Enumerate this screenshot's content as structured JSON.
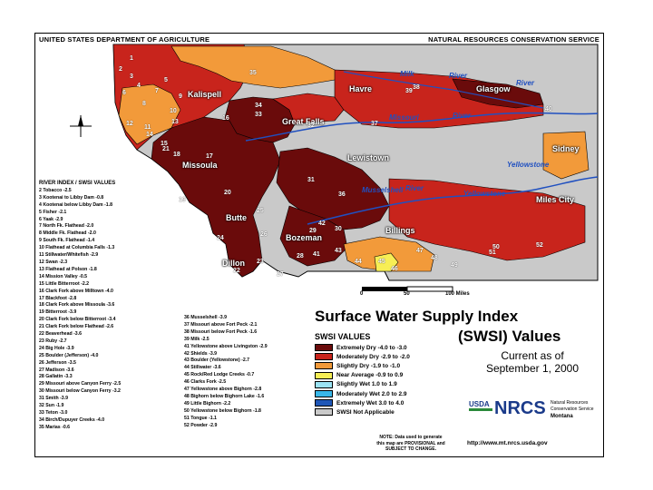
{
  "header": {
    "left": "UNITED STATES DEPARTMENT OF AGRICULTURE",
    "right": "NATURAL RESOURCES CONSERVATION SERVICE"
  },
  "cities": [
    "Kalispell",
    "Havre",
    "Glasgow",
    "Great Falls",
    "Missoula",
    "Lewistown",
    "Sidney",
    "Miles City",
    "Butte",
    "Billings",
    "Bozeman",
    "Dillon"
  ],
  "rivers": [
    "Milk",
    "River",
    "River",
    "Missouri",
    "River",
    "Yellowstone",
    "Musselshell",
    "River",
    "Yellowstone"
  ],
  "basin_numbers": [
    "1",
    "2",
    "3",
    "4",
    "5",
    "6",
    "7",
    "8",
    "9",
    "10",
    "11",
    "12",
    "13",
    "14",
    "15",
    "16",
    "17",
    "18",
    "19",
    "20",
    "21",
    "22",
    "23",
    "24",
    "25",
    "26",
    "27",
    "28",
    "29",
    "30",
    "31",
    "32",
    "33",
    "34",
    "35",
    "36",
    "37",
    "38",
    "39",
    "40",
    "41",
    "42",
    "43",
    "44",
    "45",
    "46",
    "47",
    "48",
    "49",
    "50",
    "51",
    "52"
  ],
  "index_list_title": "RIVER INDEX / SWSI VALUES",
  "index_list_left": [
    "2 Tobacco -2.5",
    "3 Kootenai to Libby Dam -0.8",
    "4 Kootenai below Libby Dam -1.8",
    "5 Fisher -2.1",
    "6 Yaak -2.9",
    "7 North Fk. Flathead -2.0",
    "8 Middle Fk. Flathead -2.0",
    "9 South Fk. Flathead -1.4",
    "10 Flathead at Columbia Falls -1.3",
    "11 Stillwater/Whitefish -2.9",
    "12 Swan -2.3",
    "13 Flathead at Polson -1.8",
    "14 Mission Valley -0.5",
    "15 Little Bitterroot -2.2",
    "16 Clark Fork above Milltown -4.0",
    "17 Blackfoot -2.8",
    "18 Clark Fork above Missoula -3.6",
    "19 Bitterroot -3.9",
    "20 Clark Fork below Bitterroot -3.4",
    "21 Clark Fork below Flathead -2.6",
    "22 Beaverhead -3.6",
    "23 Ruby -2.7",
    "24 Big Hole -3.9",
    "25 Boulder (Jefferson) -4.0",
    "26 Jefferson -3.5",
    "27 Madison -3.6",
    "28 Gallatin -3.3",
    "29 Missouri above Canyon Ferry -2.5",
    "30 Missouri below Canyon Ferry -3.2",
    "31 Smith -3.9",
    "32 Sun -1.9",
    "33 Teton -3.0",
    "34 Birch/Dupuyer Creeks -4.0",
    "35 Marias -0.6"
  ],
  "index_list_right": [
    "36 Musselshell -3.9",
    "37 Missouri above Fort Peck -2.1",
    "38 Missouri below Fort Peck -1.6",
    "39 Milk -2.5",
    "41 Yellowstone above Livingston -2.9",
    "42 Shields -3.9",
    "43 Boulder (Yellowstone) -2.7",
    "44 Stillwater -3.6",
    "45 Rock/Red Lodge Creeks -0.7",
    "46 Clarks Fork -2.5",
    "47 Yellowstone above Bighorn -2.8",
    "48 Bighorn below Bighorn Lake -1.6",
    "49 Little Bighorn -2.2",
    "50 Yellowstone below Bighorn -1.8",
    "51 Tongue -1.1",
    "52 Powder -2.9"
  ],
  "scale": {
    "labels": [
      "0",
      "50",
      "100 Miles"
    ]
  },
  "title": "Surface Water Supply Index",
  "subtitle": "(SWSI) Values",
  "swsi_values_label": "SWSI VALUES",
  "legend": [
    {
      "label": "Extremely Dry -4.0 to -3.0",
      "color": "#6a0b0b"
    },
    {
      "label": "Moderately Dry -2.9 to -2.0",
      "color": "#c8241c"
    },
    {
      "label": "Slightly Dry -1.9 to -1.0",
      "color": "#f29a3a"
    },
    {
      "label": "Near Average -0.9 to 0.9",
      "color": "#f7ee55"
    },
    {
      "label": "Slightly Wet 1.0 to 1.9",
      "color": "#9be3f4"
    },
    {
      "label": "Moderately Wet 2.0 to 2.9",
      "color": "#3ab7e8"
    },
    {
      "label": "Extremely Wet 3.0 to 4.0",
      "color": "#1f57b7"
    },
    {
      "label": "SWSI Not Applicable",
      "color": "#c9c9c9"
    }
  ],
  "current_as_of": [
    "Current as of",
    "September 1, 2000"
  ],
  "note": [
    "NOTE: Data used to generate",
    "this map are PROVISIONAL and",
    "SUBJECT TO CHANGE."
  ],
  "nrcs": {
    "usda": "USDA",
    "nrcs": "NRCS",
    "line1": "Natural Resources",
    "line2": "Conservation Service",
    "state": "Montana"
  },
  "url": "http://www.mt.nrcs.usda.gov"
}
